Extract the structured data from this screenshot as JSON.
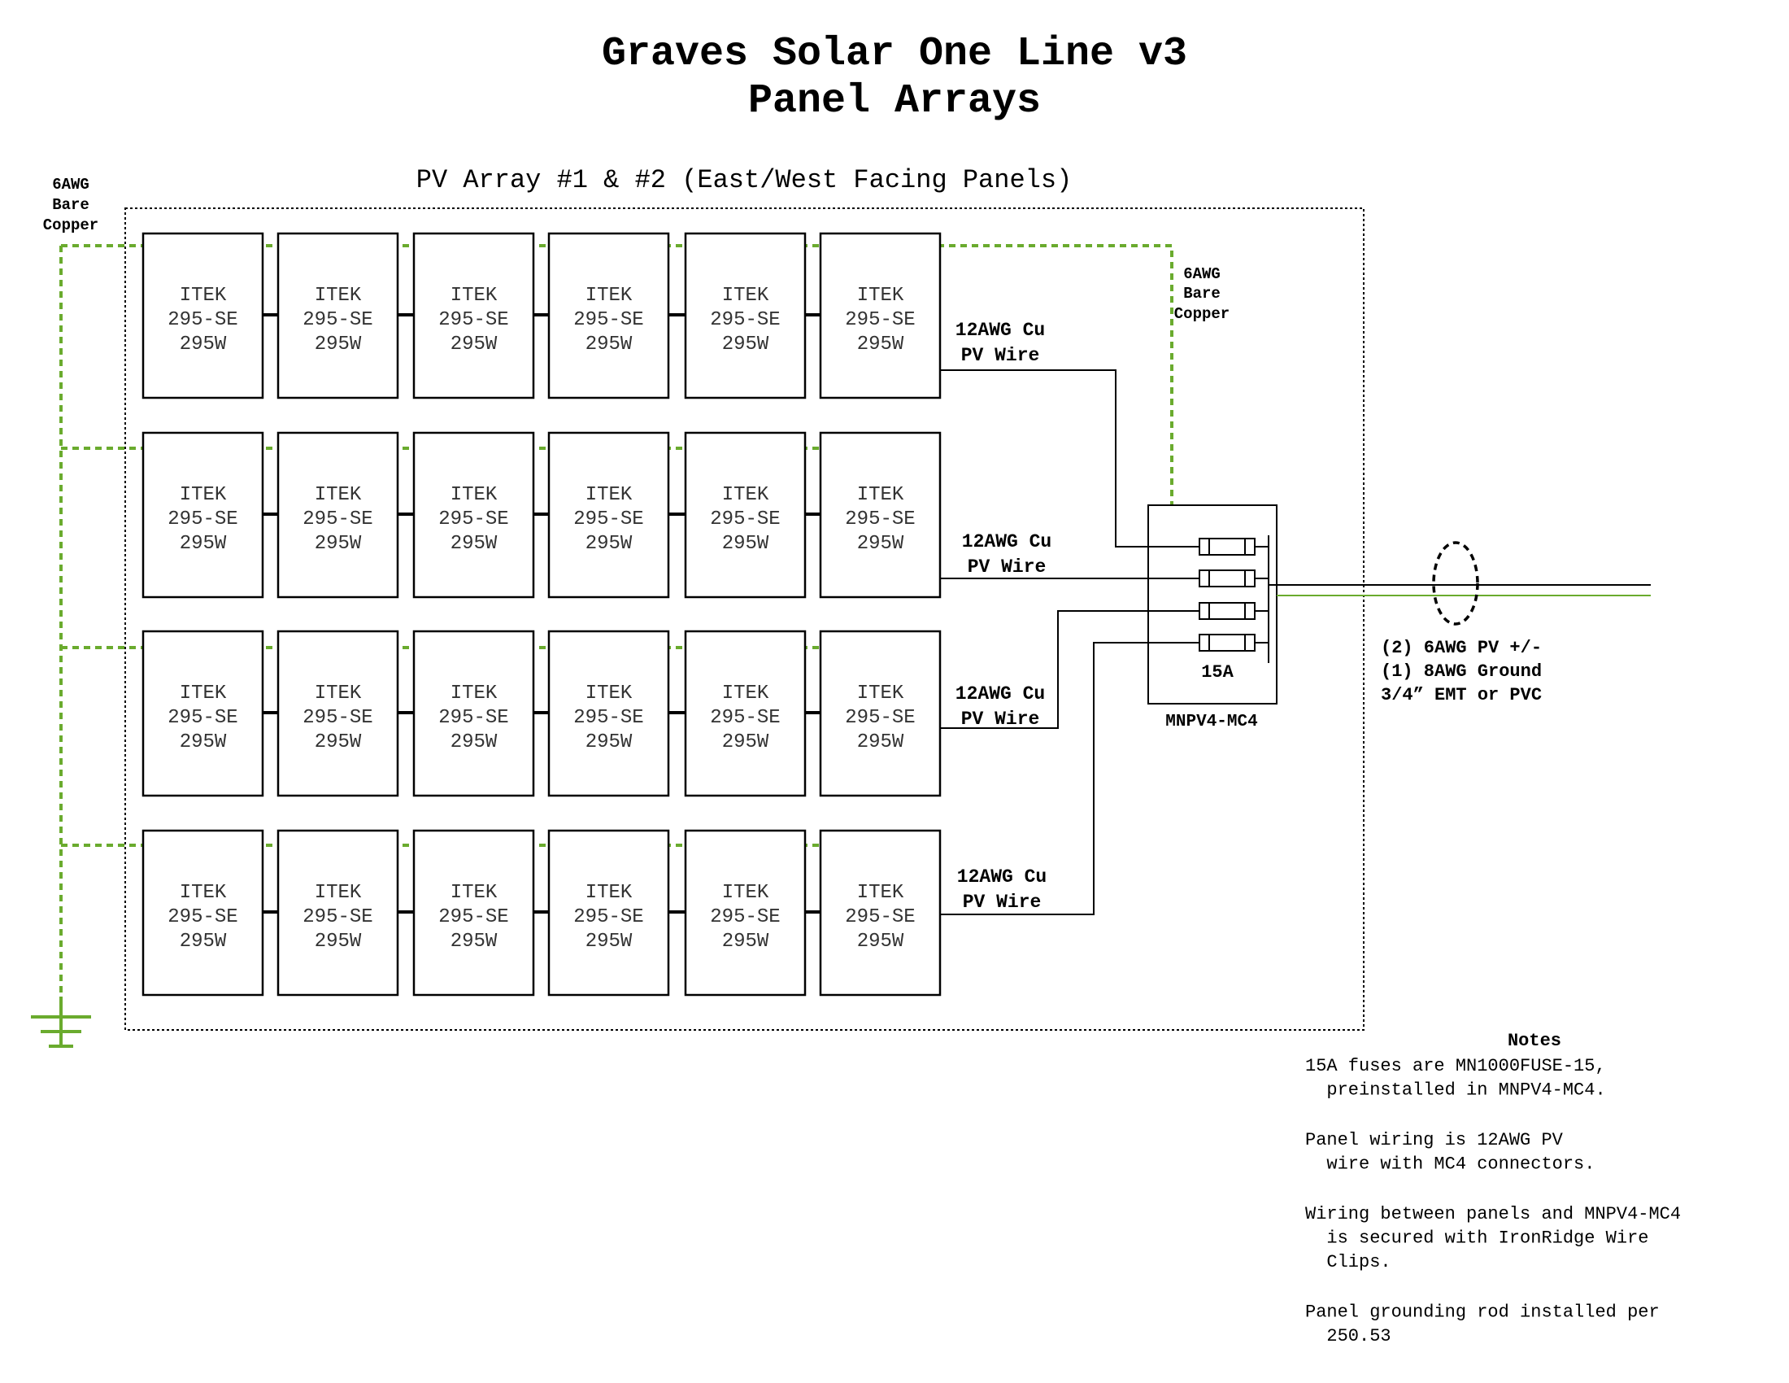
{
  "title_line1": "Graves Solar One Line v3",
  "title_line2": "Panel Arrays",
  "array_label": "PV Array #1 & #2 (East/West Facing Panels)",
  "panel": {
    "line1": "ITEK",
    "line2": "295-SE",
    "line3": "295W"
  },
  "panel_rows": 4,
  "panel_cols": 6,
  "ground_left_label": [
    "6AWG",
    "Bare",
    "Copper"
  ],
  "ground_right_label": [
    "6AWG",
    "Bare",
    "Copper"
  ],
  "string_wire_label": [
    "12AWG Cu",
    "PV Wire"
  ],
  "combiner": {
    "fuse_label": "15A",
    "name": "MNPV4-MC4",
    "fuse_count": 4
  },
  "output_label": [
    "(2) 6AWG PV +/-",
    "(1) 8AWG Ground",
    "3/4” EMT or PVC"
  ],
  "notes": {
    "heading": "Notes",
    "items": [
      [
        "15A fuses are MN1000FUSE-15,",
        "  preinstalled in MNPV4-MC4."
      ],
      [
        "Panel wiring is 12AWG PV",
        "  wire with MC4 connectors."
      ],
      [
        "Wiring between panels and MNPV4-MC4",
        "  is secured with IronRidge Wire",
        "  Clips."
      ],
      [
        "Panel grounding rod installed per",
        "  250.53"
      ]
    ]
  },
  "colors": {
    "ground_green": "#6aab2e",
    "line": "#000000",
    "background": "#ffffff"
  }
}
